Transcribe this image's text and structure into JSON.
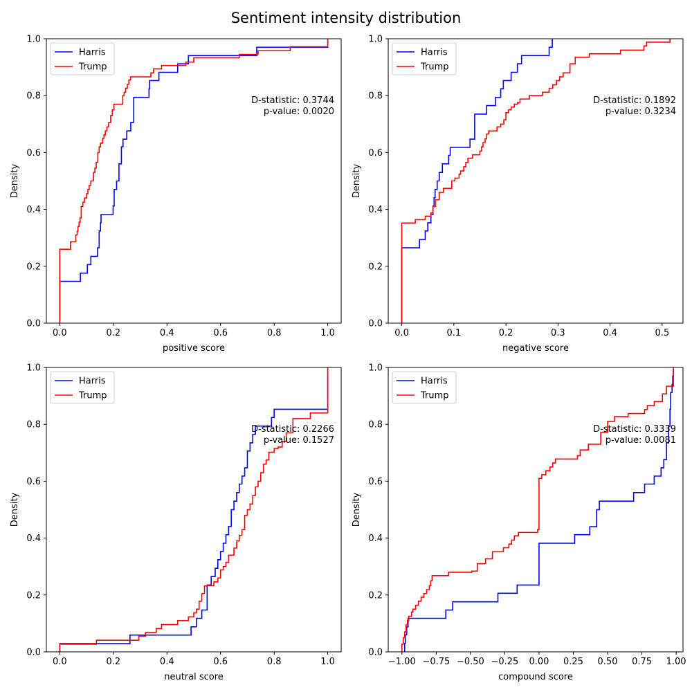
{
  "figure_title": "Sentiment intensity distribution",
  "colors": {
    "Harris": "#0000ff",
    "Trump": "#ff0000",
    "axis": "#000000"
  },
  "chart_data": [
    {
      "type": "line",
      "step": true,
      "title": "",
      "xlabel": "positive score",
      "ylabel": "Density",
      "xlim": [
        -0.05,
        1.05
      ],
      "ylim": [
        0,
        1
      ],
      "xticks": [
        0.0,
        0.2,
        0.4,
        0.6,
        0.8,
        1.0
      ],
      "xtick_labels": [
        "0.0",
        "0.2",
        "0.4",
        "0.6",
        "0.8",
        "1.0"
      ],
      "yticks": [
        0.0,
        0.2,
        0.4,
        0.6,
        0.8,
        1.0
      ],
      "ytick_labels": [
        "0.0",
        "0.2",
        "0.4",
        "0.6",
        "0.8",
        "1.0"
      ],
      "legend": {
        "placement": "upper-left",
        "entries": [
          "Harris",
          "Trump"
        ]
      },
      "annotation": [
        "D-statistic: 0.3744",
        "p-value: 0.0020"
      ],
      "series": [
        {
          "name": "Harris",
          "color": "#0000ff",
          "x": [
            0.0,
            0.0,
            0.077,
            0.103,
            0.116,
            0.141,
            0.147,
            0.152,
            0.154,
            0.156,
            0.199,
            0.203,
            0.212,
            0.221,
            0.23,
            0.236,
            0.24,
            0.25,
            0.258,
            0.265,
            0.27,
            0.276,
            0.333,
            0.335,
            0.345,
            0.37,
            0.4,
            0.44,
            0.48,
            0.67,
            0.735,
            0.86,
            1.0
          ],
          "y": [
            0.0,
            0.147,
            0.176,
            0.206,
            0.235,
            0.265,
            0.324,
            0.353,
            0.382,
            0.382,
            0.412,
            0.47,
            0.5,
            0.56,
            0.62,
            0.647,
            0.647,
            0.676,
            0.676,
            0.706,
            0.706,
            0.794,
            0.824,
            0.853,
            0.853,
            0.882,
            0.882,
            0.912,
            0.941,
            0.941,
            0.97,
            0.97,
            1.0
          ]
        },
        {
          "name": "Trump",
          "color": "#ff0000",
          "x": [
            0.0,
            0.0,
            0.04,
            0.06,
            0.065,
            0.068,
            0.072,
            0.076,
            0.08,
            0.086,
            0.092,
            0.1,
            0.105,
            0.11,
            0.116,
            0.12,
            0.126,
            0.131,
            0.136,
            0.142,
            0.147,
            0.152,
            0.16,
            0.165,
            0.17,
            0.176,
            0.182,
            0.19,
            0.196,
            0.202,
            0.235,
            0.24,
            0.246,
            0.252,
            0.258,
            0.264,
            0.27,
            0.34,
            0.35,
            0.38,
            0.43,
            0.47,
            0.5,
            0.67,
            0.74,
            0.86,
            1.0
          ],
          "y": [
            0.0,
            0.26,
            0.286,
            0.31,
            0.324,
            0.34,
            0.355,
            0.37,
            0.41,
            0.425,
            0.44,
            0.455,
            0.47,
            0.485,
            0.5,
            0.5,
            0.53,
            0.545,
            0.566,
            0.6,
            0.62,
            0.633,
            0.65,
            0.662,
            0.676,
            0.69,
            0.705,
            0.73,
            0.75,
            0.77,
            0.8,
            0.812,
            0.826,
            0.84,
            0.855,
            0.866,
            0.866,
            0.88,
            0.894,
            0.906,
            0.906,
            0.918,
            0.933,
            0.945,
            0.958,
            0.972,
            1.0
          ]
        }
      ]
    },
    {
      "type": "line",
      "step": true,
      "title": "",
      "xlabel": "negative score",
      "ylabel": "Density",
      "xlim": [
        -0.026,
        0.54
      ],
      "ylim": [
        0,
        1
      ],
      "xticks": [
        0.0,
        0.1,
        0.2,
        0.3,
        0.4,
        0.5
      ],
      "xtick_labels": [
        "0.0",
        "0.1",
        "0.2",
        "0.3",
        "0.4",
        "0.5"
      ],
      "yticks": [
        0.0,
        0.2,
        0.4,
        0.6,
        0.8,
        1.0
      ],
      "ytick_labels": [
        "0.0",
        "0.2",
        "0.4",
        "0.6",
        "0.8",
        "1.0"
      ],
      "legend": {
        "placement": "upper-left",
        "entries": [
          "Harris",
          "Trump"
        ]
      },
      "annotation": [
        "D-statistic: 0.1892",
        "p-value: 0.3234"
      ],
      "series": [
        {
          "name": "Harris",
          "color": "#0000ff",
          "x": [
            0.0,
            0.0,
            0.034,
            0.045,
            0.05,
            0.056,
            0.06,
            0.062,
            0.064,
            0.068,
            0.072,
            0.078,
            0.09,
            0.093,
            0.131,
            0.14,
            0.163,
            0.18,
            0.19,
            0.195,
            0.2,
            0.21,
            0.222,
            0.23,
            0.283,
            0.289,
            0.29
          ],
          "y": [
            0.0,
            0.265,
            0.294,
            0.324,
            0.353,
            0.382,
            0.412,
            0.441,
            0.47,
            0.5,
            0.53,
            0.56,
            0.59,
            0.618,
            0.647,
            0.735,
            0.765,
            0.794,
            0.824,
            0.853,
            0.853,
            0.882,
            0.912,
            0.941,
            0.97,
            1.0,
            1.0
          ]
        },
        {
          "name": "Trump",
          "color": "#ff0000",
          "x": [
            0.0,
            0.0,
            0.026,
            0.045,
            0.056,
            0.06,
            0.065,
            0.072,
            0.08,
            0.096,
            0.102,
            0.11,
            0.113,
            0.119,
            0.123,
            0.127,
            0.13,
            0.136,
            0.15,
            0.153,
            0.156,
            0.16,
            0.163,
            0.167,
            0.173,
            0.183,
            0.19,
            0.196,
            0.2,
            0.205,
            0.21,
            0.216,
            0.222,
            0.227,
            0.245,
            0.27,
            0.283,
            0.29,
            0.297,
            0.303,
            0.31,
            0.315,
            0.323,
            0.333,
            0.36,
            0.42,
            0.465,
            0.47,
            0.473,
            0.515
          ],
          "y": [
            0.0,
            0.352,
            0.364,
            0.376,
            0.388,
            0.41,
            0.434,
            0.46,
            0.474,
            0.5,
            0.51,
            0.524,
            0.535,
            0.55,
            0.565,
            0.58,
            0.58,
            0.592,
            0.605,
            0.62,
            0.635,
            0.648,
            0.665,
            0.676,
            0.676,
            0.69,
            0.7,
            0.715,
            0.74,
            0.75,
            0.76,
            0.77,
            0.775,
            0.788,
            0.8,
            0.812,
            0.826,
            0.838,
            0.853,
            0.866,
            0.88,
            0.88,
            0.912,
            0.935,
            0.947,
            0.96,
            0.975,
            0.988,
            0.988,
            1.0
          ]
        }
      ]
    },
    {
      "type": "line",
      "step": true,
      "title": "",
      "xlabel": "neutral score",
      "ylabel": "Density",
      "xlim": [
        -0.05,
        1.05
      ],
      "ylim": [
        0,
        1
      ],
      "xticks": [
        0.0,
        0.2,
        0.4,
        0.6,
        0.8,
        1.0
      ],
      "xtick_labels": [
        "0.0",
        "0.2",
        "0.4",
        "0.6",
        "0.8",
        "1.0"
      ],
      "yticks": [
        0.0,
        0.2,
        0.4,
        0.6,
        0.8,
        1.0
      ],
      "ytick_labels": [
        "0.0",
        "0.2",
        "0.4",
        "0.6",
        "0.8",
        "1.0"
      ],
      "legend": {
        "placement": "upper-left",
        "entries": [
          "Harris",
          "Trump"
        ]
      },
      "annotation": [
        "D-statistic: 0.2266",
        "p-value: 0.1527"
      ],
      "series": [
        {
          "name": "Harris",
          "color": "#0000ff",
          "x": [
            0.0,
            0.0,
            0.262,
            0.49,
            0.51,
            0.53,
            0.55,
            0.565,
            0.58,
            0.59,
            0.6,
            0.61,
            0.62,
            0.63,
            0.64,
            0.65,
            0.66,
            0.67,
            0.68,
            0.69,
            0.7,
            0.71,
            0.72,
            0.73,
            0.79,
            0.8,
            1.0,
            1.0
          ],
          "y": [
            0.0,
            0.029,
            0.059,
            0.088,
            0.118,
            0.147,
            0.235,
            0.265,
            0.294,
            0.324,
            0.353,
            0.382,
            0.412,
            0.441,
            0.5,
            0.53,
            0.56,
            0.59,
            0.618,
            0.647,
            0.706,
            0.735,
            0.765,
            0.794,
            0.824,
            0.853,
            0.853,
            1.0
          ]
        },
        {
          "name": "Trump",
          "color": "#ff0000",
          "x": [
            0.0,
            0.0,
            0.137,
            0.295,
            0.32,
            0.36,
            0.38,
            0.44,
            0.48,
            0.5,
            0.51,
            0.52,
            0.53,
            0.54,
            0.55,
            0.565,
            0.575,
            0.59,
            0.6,
            0.61,
            0.62,
            0.63,
            0.65,
            0.66,
            0.67,
            0.68,
            0.69,
            0.7,
            0.71,
            0.72,
            0.73,
            0.74,
            0.75,
            0.76,
            0.77,
            0.78,
            0.8,
            0.815,
            0.83,
            0.845,
            0.87,
            0.935,
            1.0
          ],
          "y": [
            0.0,
            0.027,
            0.041,
            0.055,
            0.068,
            0.082,
            0.096,
            0.11,
            0.123,
            0.137,
            0.15,
            0.178,
            0.205,
            0.232,
            0.233,
            0.233,
            0.246,
            0.26,
            0.288,
            0.3,
            0.315,
            0.34,
            0.365,
            0.39,
            0.41,
            0.43,
            0.48,
            0.5,
            0.52,
            0.55,
            0.58,
            0.6,
            0.63,
            0.66,
            0.675,
            0.702,
            0.715,
            0.72,
            0.74,
            0.77,
            0.82,
            0.84,
            1.0
          ]
        }
      ]
    },
    {
      "type": "line",
      "step": true,
      "title": "",
      "xlabel": "compound score",
      "ylabel": "Density",
      "xlim": [
        -1.1,
        1.05
      ],
      "ylim": [
        0,
        1
      ],
      "xticks": [
        -1.0,
        -0.75,
        -0.5,
        -0.25,
        0.0,
        0.25,
        0.5,
        0.75,
        1.0
      ],
      "xtick_labels": [
        "−1.00",
        "−0.75",
        "−0.50",
        "−0.25",
        "0.00",
        "0.25",
        "0.50",
        "0.75",
        "1.00"
      ],
      "yticks": [
        0.0,
        0.2,
        0.4,
        0.6,
        0.8,
        1.0
      ],
      "ytick_labels": [
        "0.0",
        "0.2",
        "0.4",
        "0.6",
        "0.8",
        "1.0"
      ],
      "legend": {
        "placement": "upper-left",
        "entries": [
          "Harris",
          "Trump"
        ]
      },
      "annotation": [
        "D-statistic: 0.3339",
        "p-value: 0.0081"
      ],
      "series": [
        {
          "name": "Harris",
          "color": "#0000ff",
          "x": [
            -0.98,
            -0.98,
            -0.975,
            -0.965,
            -0.955,
            -0.945,
            -0.94,
            -0.68,
            -0.63,
            -0.3,
            -0.16,
            0.0,
            0.26,
            0.37,
            0.42,
            0.44,
            0.69,
            0.77,
            0.84,
            0.89,
            0.91,
            0.93,
            0.945,
            0.955,
            0.96,
            0.97,
            0.975,
            0.98
          ],
          "y": [
            0.0,
            0.03,
            0.06,
            0.088,
            0.118,
            0.118,
            0.118,
            0.147,
            0.176,
            0.206,
            0.235,
            0.382,
            0.412,
            0.44,
            0.5,
            0.53,
            0.56,
            0.59,
            0.618,
            0.647,
            0.676,
            0.735,
            0.794,
            0.853,
            0.912,
            0.94,
            0.97,
            1.0
          ]
        },
        {
          "name": "Trump",
          "color": "#ff0000",
          "x": [
            -1.0,
            -1.0,
            -0.99,
            -0.98,
            -0.97,
            -0.96,
            -0.95,
            -0.93,
            -0.92,
            -0.9,
            -0.88,
            -0.86,
            -0.84,
            -0.82,
            -0.8,
            -0.79,
            -0.78,
            -0.66,
            -0.49,
            -0.45,
            -0.39,
            -0.34,
            -0.26,
            -0.22,
            -0.2,
            -0.18,
            -0.15,
            -0.01,
            0.0,
            0.02,
            0.05,
            0.08,
            0.1,
            0.12,
            0.28,
            0.3,
            0.36,
            0.45,
            0.5,
            0.55,
            0.65,
            0.77,
            0.79,
            0.84,
            0.9,
            0.93,
            0.98
          ],
          "y": [
            0.0,
            0.027,
            0.05,
            0.07,
            0.095,
            0.11,
            0.125,
            0.14,
            0.15,
            0.164,
            0.178,
            0.192,
            0.205,
            0.219,
            0.233,
            0.25,
            0.268,
            0.28,
            0.284,
            0.31,
            0.327,
            0.352,
            0.366,
            0.379,
            0.393,
            0.408,
            0.42,
            0.43,
            0.61,
            0.623,
            0.637,
            0.65,
            0.664,
            0.678,
            0.69,
            0.71,
            0.73,
            0.772,
            0.81,
            0.827,
            0.838,
            0.852,
            0.866,
            0.88,
            0.907,
            0.934,
            1.0
          ]
        }
      ]
    }
  ]
}
